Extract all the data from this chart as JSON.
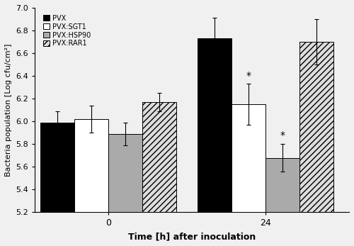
{
  "groups": [
    "0",
    "24"
  ],
  "series": [
    "PVX",
    "PVX:SGT1",
    "PVX:HSP90",
    "PVX:RAR1"
  ],
  "values": [
    [
      5.99,
      6.02,
      5.89,
      6.17
    ],
    [
      6.73,
      6.15,
      5.68,
      6.7
    ]
  ],
  "errors": [
    [
      0.1,
      0.12,
      0.1,
      0.08
    ],
    [
      0.18,
      0.18,
      0.12,
      0.2
    ]
  ],
  "asterisks": [
    [
      false,
      false,
      false,
      false
    ],
    [
      false,
      true,
      true,
      false
    ]
  ],
  "colors": [
    "#000000",
    "#ffffff",
    "#aaaaaa",
    "#dddddd"
  ],
  "hatch": [
    null,
    null,
    null,
    "////"
  ],
  "edgecolors": [
    "#000000",
    "#000000",
    "#000000",
    "#000000"
  ],
  "ylim": [
    5.2,
    7.0
  ],
  "yticks": [
    5.2,
    5.4,
    5.6,
    5.8,
    6.0,
    6.2,
    6.4,
    6.6,
    6.8,
    7.0
  ],
  "ylabel": "Bacteria population [Log cfu/cm²]",
  "xlabel": "Time [h] after inoculation",
  "bar_width": 0.13,
  "group_centers": [
    0.28,
    0.88
  ],
  "background_color": "#f0f0f0",
  "title": ""
}
